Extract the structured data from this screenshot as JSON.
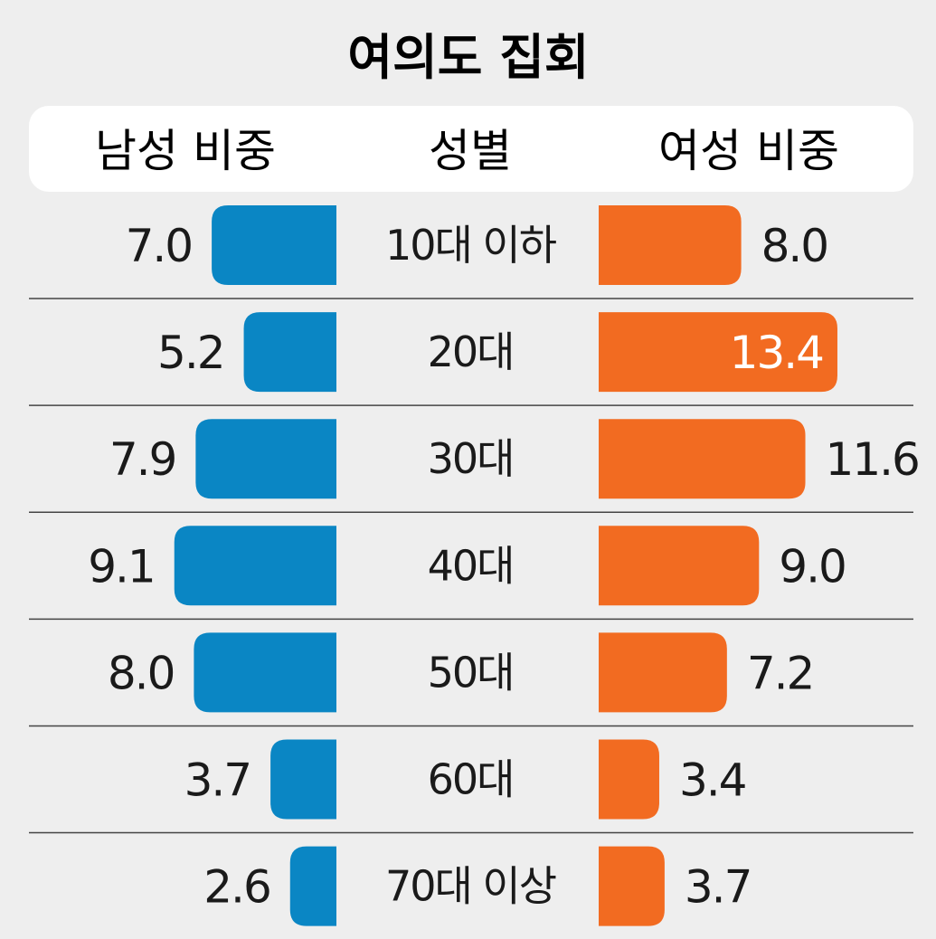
{
  "chart_data": {
    "type": "bar",
    "title": "여의도 집회",
    "headers": {
      "left": "남성 비중",
      "center": "성별",
      "right": "여성 비중"
    },
    "categories": [
      "10대 이하",
      "20대",
      "30대",
      "40대",
      "50대",
      "60대",
      "70대 이상"
    ],
    "series": [
      {
        "name": "남성 비중",
        "color": "#0a86c4",
        "values": [
          7.0,
          5.2,
          7.9,
          9.1,
          8.0,
          3.7,
          2.6
        ]
      },
      {
        "name": "여성 비중",
        "color": "#f26b21",
        "values": [
          8.0,
          13.4,
          11.6,
          9.0,
          7.2,
          3.4,
          3.7
        ]
      }
    ],
    "value_labels": {
      "male": [
        "7.0",
        "5.2",
        "7.9",
        "9.1",
        "8.0",
        "3.7",
        "2.6"
      ],
      "female": [
        "8.0",
        "13.4",
        "11.6",
        "9.0",
        "7.2",
        "3.4",
        "3.7"
      ]
    },
    "inside_label_color": "#ffffff",
    "layout": "back-to-back horizontal bars",
    "legend": "header row",
    "grid": false
  }
}
